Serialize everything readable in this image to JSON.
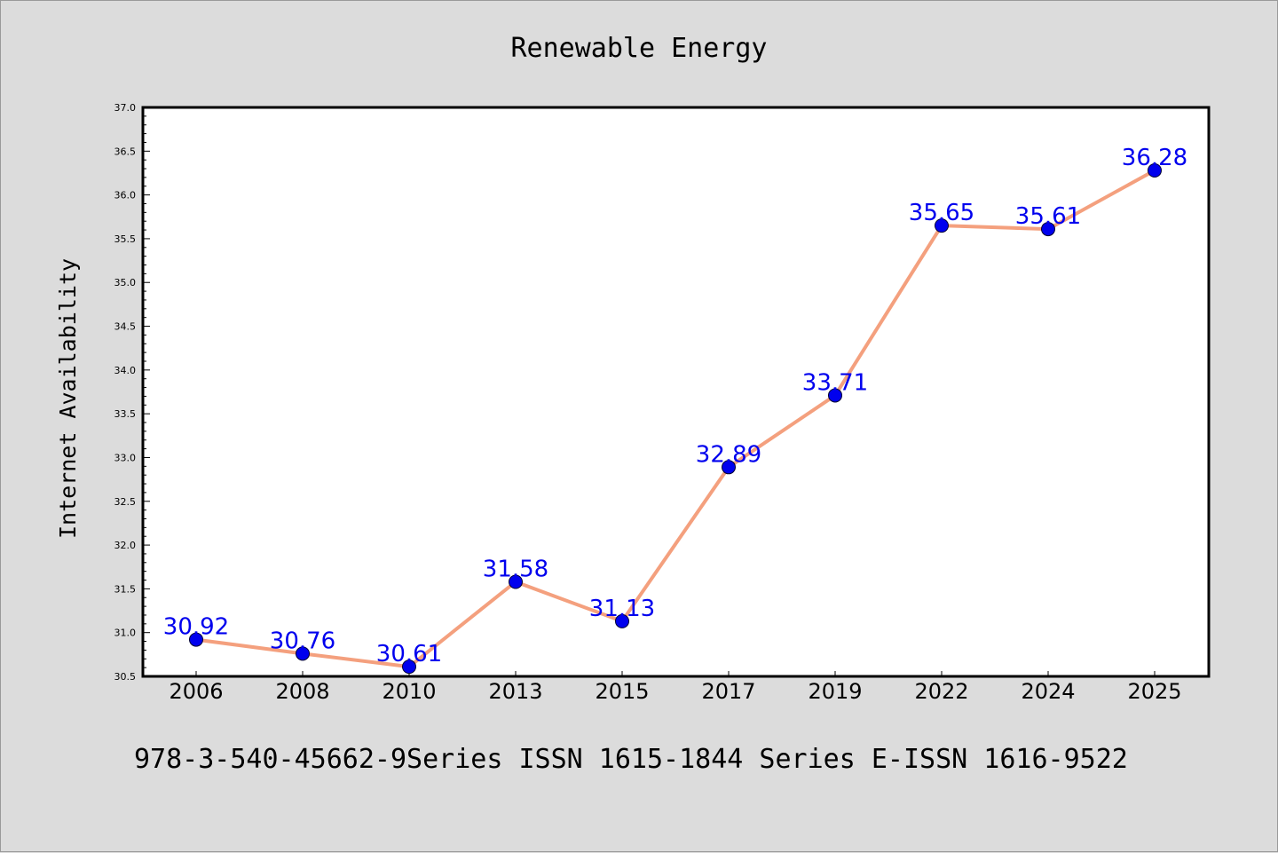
{
  "chart_data": {
    "type": "line",
    "title": "Renewable Energy",
    "xlabel": "",
    "ylabel": "Internet Availability",
    "categories": [
      "2006",
      "2008",
      "2010",
      "2013",
      "2015",
      "2017",
      "2019",
      "2022",
      "2024",
      "2025"
    ],
    "series": [
      {
        "values": [
          30.92,
          30.76,
          30.61,
          31.58,
          31.13,
          32.89,
          33.71,
          35.65,
          35.61,
          36.28
        ],
        "labels": [
          "30.92",
          "30.76",
          "30.61",
          "31.58",
          "31.13",
          "32.89",
          "33.71",
          "35.65",
          "35.61",
          "36.28"
        ],
        "line_color": "#f4a07e",
        "marker_color": "#0000ee",
        "label_color": "#0000ee"
      }
    ],
    "ylim": [
      30.5,
      37.0
    ],
    "yticks": [
      "30.5",
      "31.0",
      "31.5",
      "32.0",
      "32.5",
      "33.0",
      "33.5",
      "34.0",
      "34.5",
      "35.0",
      "35.5",
      "36.0",
      "36.5",
      "37.0"
    ],
    "grid": false,
    "legend": false
  },
  "footer_text": "978-3-540-45662-9Series ISSN 1615-1844 Series E-ISSN 1616-9522"
}
